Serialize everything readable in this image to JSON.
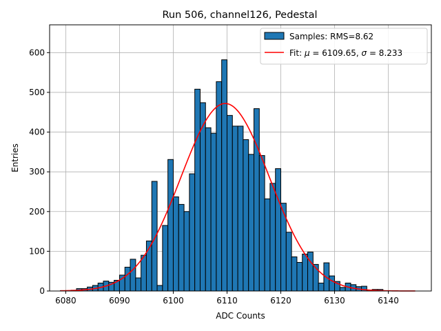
{
  "chart_data": {
    "type": "bar",
    "title": "Run 506, channel126, Pedestal",
    "xlabel": "ADC Counts",
    "ylabel": "Entries",
    "xlim": [
      6077,
      6148
    ],
    "ylim": [
      0,
      670
    ],
    "xticks": [
      6080,
      6090,
      6100,
      6110,
      6120,
      6130,
      6140
    ],
    "yticks": [
      0,
      100,
      200,
      300,
      400,
      500,
      600
    ],
    "grid": true,
    "legend_position": "top-right",
    "bin_width": 1,
    "bins": [
      [
        6079,
        1
      ],
      [
        6080,
        1
      ],
      [
        6081,
        2
      ],
      [
        6082,
        6
      ],
      [
        6083,
        6
      ],
      [
        6084,
        10
      ],
      [
        6085,
        14
      ],
      [
        6086,
        20
      ],
      [
        6087,
        25
      ],
      [
        6088,
        22
      ],
      [
        6089,
        27
      ],
      [
        6090,
        40
      ],
      [
        6091,
        60
      ],
      [
        6092,
        80
      ],
      [
        6093,
        33
      ],
      [
        6094,
        90
      ],
      [
        6095,
        126
      ],
      [
        6096,
        276
      ],
      [
        6097,
        14
      ],
      [
        6098,
        165
      ],
      [
        6099,
        331
      ],
      [
        6100,
        237
      ],
      [
        6101,
        218
      ],
      [
        6102,
        200
      ],
      [
        6103,
        295
      ],
      [
        6104,
        508
      ],
      [
        6105,
        474
      ],
      [
        6106,
        411
      ],
      [
        6107,
        397
      ],
      [
        6108,
        527
      ],
      [
        6109,
        582
      ],
      [
        6110,
        442
      ],
      [
        6111,
        415
      ],
      [
        6112,
        415
      ],
      [
        6113,
        381
      ],
      [
        6114,
        344
      ],
      [
        6115,
        459
      ],
      [
        6116,
        341
      ],
      [
        6117,
        232
      ],
      [
        6118,
        271
      ],
      [
        6119,
        308
      ],
      [
        6120,
        221
      ],
      [
        6121,
        148
      ],
      [
        6122,
        86
      ],
      [
        6123,
        72
      ],
      [
        6124,
        93
      ],
      [
        6125,
        98
      ],
      [
        6126,
        67
      ],
      [
        6127,
        20
      ],
      [
        6128,
        71
      ],
      [
        6129,
        38
      ],
      [
        6130,
        24
      ],
      [
        6131,
        9
      ],
      [
        6132,
        20
      ],
      [
        6133,
        16
      ],
      [
        6134,
        11
      ],
      [
        6135,
        12
      ],
      [
        6136,
        2
      ],
      [
        6137,
        4
      ],
      [
        6138,
        4
      ]
    ],
    "series": [
      {
        "name": "Samples: RMS=8.62",
        "kind": "histogram",
        "color": "#1f77b4",
        "edgecolor": "#000000"
      },
      {
        "name": "Fit",
        "kind": "gaussian",
        "color": "#ff0000",
        "mu": 6109.65,
        "sigma": 8.233,
        "amplitude": 472,
        "x_range": [
          6079,
          6145
        ]
      }
    ],
    "legend": {
      "hist_label": "Samples: RMS=8.62",
      "fit_prefix": "Fit: ",
      "mu_symbol": "μ",
      "mu_text": " = 6109.65, ",
      "sigma_symbol": "σ",
      "sigma_text": " = 8.233"
    }
  }
}
